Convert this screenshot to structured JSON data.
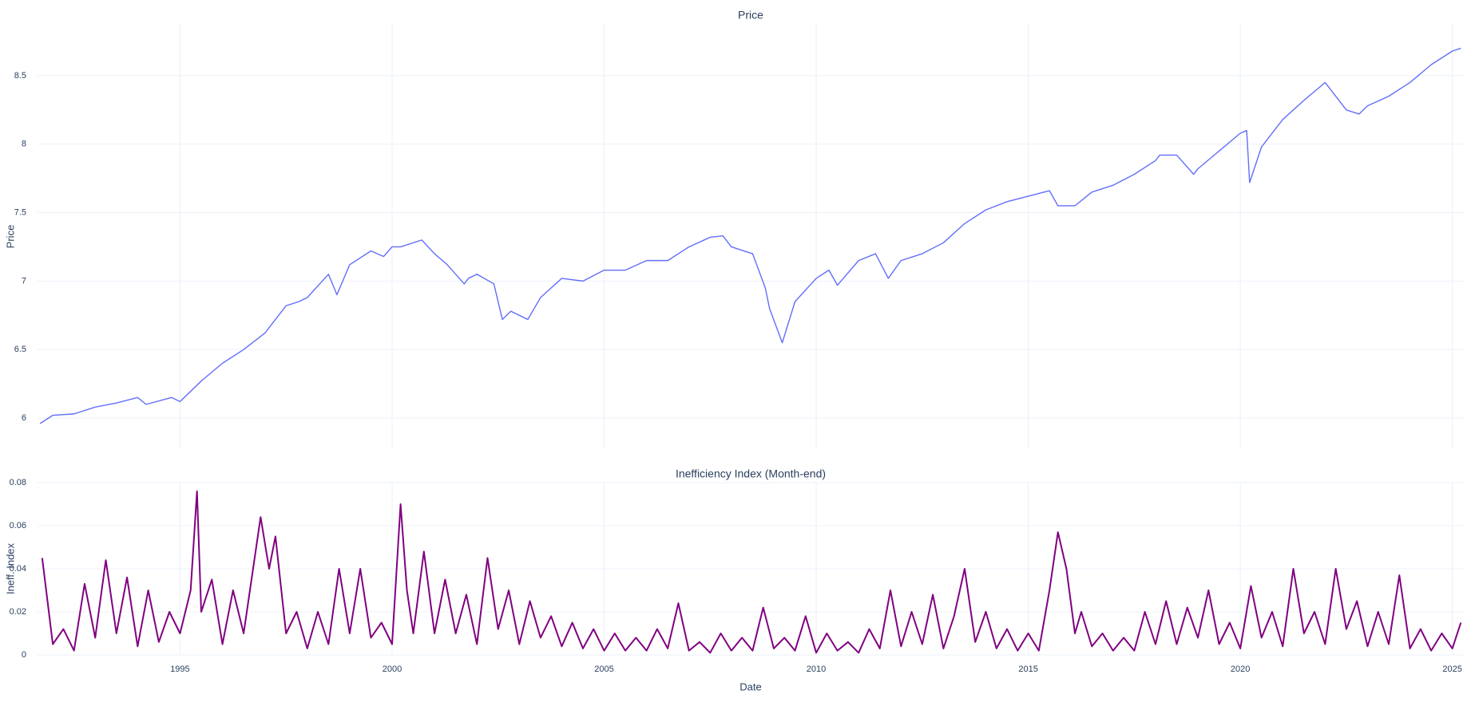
{
  "chart_data": [
    {
      "type": "line",
      "title": "Price",
      "y_label": "Price",
      "x": [
        1991.7,
        1992.0,
        1992.5,
        1993.0,
        1993.5,
        1994.0,
        1994.2,
        1994.8,
        1995.0,
        1995.5,
        1996.0,
        1996.5,
        1997.0,
        1997.5,
        1997.8,
        1998.0,
        1998.5,
        1998.7,
        1999.0,
        1999.5,
        1999.8,
        2000.0,
        2000.2,
        2000.7,
        2001.0,
        2001.3,
        2001.7,
        2001.8,
        2002.0,
        2002.4,
        2002.6,
        2002.8,
        2003.2,
        2003.5,
        2004.0,
        2004.5,
        2005.0,
        2005.5,
        2006.0,
        2006.5,
        2007.0,
        2007.5,
        2007.8,
        2008.0,
        2008.5,
        2008.8,
        2008.9,
        2009.2,
        2009.5,
        2010.0,
        2010.3,
        2010.5,
        2011.0,
        2011.4,
        2011.7,
        2012.0,
        2012.5,
        2013.0,
        2013.5,
        2014.0,
        2014.5,
        2015.0,
        2015.5,
        2015.7,
        2016.1,
        2016.5,
        2017.0,
        2017.5,
        2018.0,
        2018.1,
        2018.5,
        2018.9,
        2019.0,
        2019.5,
        2020.0,
        2020.15,
        2020.22,
        2020.5,
        2021.0,
        2021.5,
        2022.0,
        2022.5,
        2022.8,
        2023.0,
        2023.5,
        2024.0,
        2024.5,
        2025.0,
        2025.2
      ],
      "values": [
        5.96,
        6.02,
        6.03,
        6.08,
        6.11,
        6.15,
        6.1,
        6.15,
        6.12,
        6.27,
        6.4,
        6.5,
        6.62,
        6.82,
        6.85,
        6.88,
        7.05,
        6.9,
        7.12,
        7.22,
        7.18,
        7.25,
        7.25,
        7.3,
        7.2,
        7.12,
        6.98,
        7.02,
        7.05,
        6.98,
        6.72,
        6.78,
        6.72,
        6.88,
        7.02,
        7.0,
        7.08,
        7.08,
        7.15,
        7.15,
        7.25,
        7.32,
        7.33,
        7.25,
        7.2,
        6.95,
        6.8,
        6.55,
        6.85,
        7.02,
        7.08,
        6.97,
        7.15,
        7.2,
        7.02,
        7.15,
        7.2,
        7.28,
        7.42,
        7.52,
        7.58,
        7.62,
        7.66,
        7.55,
        7.55,
        7.65,
        7.7,
        7.78,
        7.88,
        7.92,
        7.92,
        7.78,
        7.82,
        7.95,
        8.08,
        8.1,
        7.72,
        7.98,
        8.18,
        8.32,
        8.45,
        8.25,
        8.22,
        8.28,
        8.35,
        8.45,
        8.58,
        8.68,
        8.7
      ],
      "color": "#636efa",
      "line_width": 1.4,
      "xlim": [
        1991.64,
        2025.27
      ],
      "xticks": [
        1995,
        2000,
        2005,
        2010,
        2015,
        2020,
        2025
      ],
      "ylim": [
        5.773,
        8.878
      ],
      "yticks": [
        6,
        6.5,
        7,
        7.5,
        8,
        8.5
      ],
      "grid": true
    },
    {
      "type": "line",
      "title": "Inefficiency Index (Month-end)",
      "y_label": "Ineff. Index",
      "x_label": "Date",
      "x": [
        1991.75,
        1992.0,
        1992.25,
        1992.5,
        1992.75,
        1993.0,
        1993.25,
        1993.5,
        1993.75,
        1994.0,
        1994.25,
        1994.5,
        1994.75,
        1995.0,
        1995.25,
        1995.4,
        1995.5,
        1995.75,
        1996.0,
        1996.25,
        1996.5,
        1996.9,
        1997.1,
        1997.25,
        1997.5,
        1997.75,
        1998.0,
        1998.25,
        1998.5,
        1998.75,
        1999.0,
        1999.25,
        1999.5,
        1999.75,
        2000.0,
        2000.2,
        2000.35,
        2000.5,
        2000.75,
        2001.0,
        2001.25,
        2001.5,
        2001.75,
        2002.0,
        2002.25,
        2002.5,
        2002.75,
        2003.0,
        2003.25,
        2003.5,
        2003.75,
        2004.0,
        2004.25,
        2004.5,
        2004.75,
        2005.0,
        2005.25,
        2005.5,
        2005.75,
        2006.0,
        2006.25,
        2006.5,
        2006.75,
        2007.0,
        2007.25,
        2007.5,
        2007.75,
        2008.0,
        2008.25,
        2008.5,
        2008.75,
        2009.0,
        2009.25,
        2009.5,
        2009.75,
        2010.0,
        2010.25,
        2010.5,
        2010.75,
        2011.0,
        2011.25,
        2011.5,
        2011.75,
        2012.0,
        2012.25,
        2012.5,
        2012.75,
        2013.0,
        2013.25,
        2013.5,
        2013.75,
        2014.0,
        2014.25,
        2014.5,
        2014.75,
        2015.0,
        2015.25,
        2015.5,
        2015.7,
        2015.9,
        2016.1,
        2016.25,
        2016.5,
        2016.75,
        2017.0,
        2017.25,
        2017.5,
        2017.75,
        2018.0,
        2018.25,
        2018.5,
        2018.75,
        2019.0,
        2019.25,
        2019.5,
        2019.75,
        2020.0,
        2020.25,
        2020.5,
        2020.75,
        2021.0,
        2021.25,
        2021.5,
        2021.75,
        2022.0,
        2022.25,
        2022.5,
        2022.75,
        2023.0,
        2023.25,
        2023.5,
        2023.75,
        2024.0,
        2024.25,
        2024.5,
        2024.75,
        2025.0,
        2025.2
      ],
      "values": [
        0.045,
        0.005,
        0.012,
        0.002,
        0.033,
        0.008,
        0.044,
        0.01,
        0.036,
        0.004,
        0.03,
        0.006,
        0.02,
        0.01,
        0.03,
        0.076,
        0.02,
        0.035,
        0.005,
        0.03,
        0.01,
        0.064,
        0.04,
        0.055,
        0.01,
        0.02,
        0.003,
        0.02,
        0.005,
        0.04,
        0.01,
        0.04,
        0.008,
        0.015,
        0.005,
        0.07,
        0.03,
        0.01,
        0.048,
        0.01,
        0.035,
        0.01,
        0.028,
        0.005,
        0.045,
        0.012,
        0.03,
        0.005,
        0.025,
        0.008,
        0.018,
        0.004,
        0.015,
        0.003,
        0.012,
        0.002,
        0.01,
        0.002,
        0.008,
        0.002,
        0.012,
        0.003,
        0.024,
        0.002,
        0.006,
        0.001,
        0.01,
        0.002,
        0.008,
        0.002,
        0.022,
        0.003,
        0.008,
        0.002,
        0.018,
        0.001,
        0.01,
        0.002,
        0.006,
        0.001,
        0.012,
        0.003,
        0.03,
        0.004,
        0.02,
        0.005,
        0.028,
        0.003,
        0.018,
        0.04,
        0.006,
        0.02,
        0.003,
        0.012,
        0.002,
        0.01,
        0.002,
        0.03,
        0.057,
        0.04,
        0.01,
        0.02,
        0.004,
        0.01,
        0.002,
        0.008,
        0.002,
        0.02,
        0.005,
        0.025,
        0.005,
        0.022,
        0.008,
        0.03,
        0.005,
        0.015,
        0.003,
        0.032,
        0.008,
        0.02,
        0.004,
        0.04,
        0.01,
        0.02,
        0.005,
        0.04,
        0.012,
        0.025,
        0.004,
        0.02,
        0.005,
        0.037,
        0.003,
        0.012,
        0.002,
        0.01,
        0.003,
        0.015
      ],
      "color": "#800080",
      "line_width": 2,
      "xlim": [
        1991.64,
        2025.27
      ],
      "xticks": [
        1995,
        2000,
        2005,
        2010,
        2015,
        2020,
        2025
      ],
      "ylim": [
        0,
        0.08
      ],
      "yticks": [
        0,
        0.02,
        0.04,
        0.06,
        0.08
      ],
      "grid": true
    }
  ]
}
